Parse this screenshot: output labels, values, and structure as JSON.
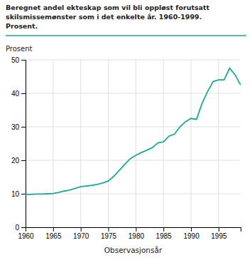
{
  "chart_data": {
    "type": "line",
    "title": [
      "Beregnet andel ekteskap som vil bli oppløst forutsatt",
      "skilsmissemønster som i det enkelte år. 1960-1999.",
      "Prosent."
    ],
    "y_label": "Prosent",
    "x_label": "Observasjonsår",
    "color": "#1aaa96",
    "grid": true,
    "xlim": [
      1960,
      1999
    ],
    "ylim": [
      0,
      50
    ],
    "xticks": [
      1960,
      1965,
      1970,
      1975,
      1980,
      1985,
      1990,
      1995
    ],
    "yticks": [
      0,
      10,
      20,
      30,
      40,
      50
    ],
    "x": [
      1960,
      1961,
      1962,
      1963,
      1964,
      1965,
      1966,
      1967,
      1968,
      1969,
      1970,
      1971,
      1972,
      1973,
      1974,
      1975,
      1976,
      1977,
      1978,
      1979,
      1980,
      1981,
      1982,
      1983,
      1984,
      1985,
      1986,
      1987,
      1988,
      1989,
      1990,
      1991,
      1992,
      1993,
      1994,
      1995,
      1996,
      1997,
      1998,
      1999
    ],
    "values": [
      9.8,
      9.8,
      9.9,
      9.9,
      10.0,
      10.1,
      10.4,
      10.8,
      11.1,
      11.6,
      12.1,
      12.3,
      12.5,
      12.8,
      13.2,
      13.8,
      15.2,
      17.0,
      18.8,
      20.5,
      21.5,
      22.3,
      23.0,
      23.8,
      25.2,
      25.5,
      27.2,
      27.8,
      30.0,
      31.5,
      32.5,
      32.2,
      37.0,
      40.5,
      43.5,
      44.0,
      44.0,
      47.5,
      45.5,
      42.5
    ]
  }
}
